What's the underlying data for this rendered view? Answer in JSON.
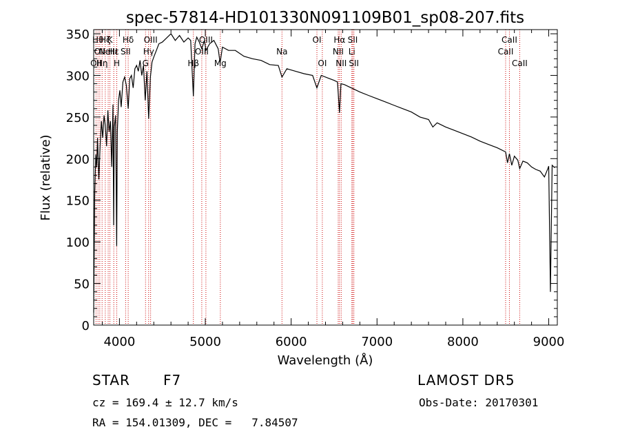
{
  "chart_data": {
    "type": "line",
    "title": "spec-57814-HD101330N091109B01_sp08-207.fits",
    "xlabel": "Wavelength (Å)",
    "ylabel": "Flux (relative)",
    "xlim": [
      3700,
      9100
    ],
    "ylim": [
      0,
      355
    ],
    "x_ticks": [
      4000,
      5000,
      6000,
      7000,
      8000,
      9000
    ],
    "y_ticks": [
      0,
      50,
      100,
      150,
      200,
      250,
      300,
      350
    ],
    "grid": false,
    "series": [
      {
        "x": [
          3700,
          3712,
          3725,
          3735,
          3745,
          3760,
          3775,
          3790,
          3805,
          3820,
          3835,
          3850,
          3865,
          3880,
          3895,
          3910,
          3925,
          3933,
          3940,
          3955,
          3968,
          3975,
          3990,
          4005,
          4020,
          4040,
          4060,
          4080,
          4102,
          4120,
          4140,
          4160,
          4180,
          4200,
          4220,
          4240,
          4260,
          4280,
          4300,
          4320,
          4340,
          4360,
          4380,
          4400,
          4430,
          4460,
          4500,
          4550,
          4600,
          4650,
          4700,
          4750,
          4800,
          4830,
          4861,
          4880,
          4900,
          4930,
          4959,
          4990,
          5007,
          5050,
          5100,
          5150,
          5172,
          5200,
          5270,
          5350,
          5450,
          5550,
          5650,
          5750,
          5850,
          5893,
          5950,
          6050,
          6150,
          6250,
          6300,
          6350,
          6450,
          6500,
          6540,
          6563,
          6580,
          6620,
          6700,
          6800,
          6900,
          7000,
          7100,
          7200,
          7300,
          7400,
          7500,
          7600,
          7650,
          7700,
          7800,
          7900,
          8000,
          8100,
          8200,
          8300,
          8400,
          8498,
          8520,
          8542,
          8570,
          8600,
          8640,
          8662,
          8700,
          8750,
          8800,
          8850,
          8900,
          8950,
          8990,
          9000,
          9020,
          9040,
          9050,
          9060,
          9070
        ],
        "y": [
          15,
          160,
          205,
          190,
          225,
          175,
          215,
          245,
          225,
          252,
          240,
          215,
          258,
          232,
          245,
          190,
          265,
          120,
          238,
          252,
          95,
          232,
          270,
          282,
          262,
          292,
          298,
          288,
          260,
          296,
          300,
          285,
          308,
          312,
          305,
          318,
          300,
          312,
          270,
          305,
          248,
          298,
          316,
          322,
          330,
          338,
          340,
          345,
          350,
          342,
          348,
          340,
          345,
          342,
          275,
          338,
          346,
          340,
          332,
          342,
          330,
          338,
          342,
          332,
          315,
          334,
          330,
          330,
          323,
          320,
          318,
          313,
          312,
          298,
          308,
          305,
          302,
          300,
          285,
          300,
          296,
          294,
          292,
          255,
          290,
          289,
          285,
          280,
          276,
          272,
          268,
          264,
          260,
          256,
          250,
          247,
          238,
          243,
          238,
          234,
          230,
          226,
          221,
          217,
          213,
          208,
          195,
          206,
          192,
          203,
          198,
          188,
          197,
          195,
          190,
          187,
          185,
          178,
          188,
          191,
          40,
          192,
          191,
          190,
          189
        ]
      }
    ],
    "line_markers": [
      {
        "x": 3727,
        "labels": [
          "OII"
        ],
        "rows": [
          3
        ]
      },
      {
        "x": 3750,
        "labels": [
          "Hθ"
        ],
        "rows": [
          1
        ]
      },
      {
        "x": 3771,
        "labels": [
          "OII"
        ],
        "rows": [
          2
        ]
      },
      {
        "x": 3798,
        "labels": [
          "Hη"
        ],
        "rows": [
          3
        ]
      },
      {
        "x": 3835,
        "labels": [
          "Hζ"
        ],
        "rows": [
          1
        ]
      },
      {
        "x": 3869,
        "labels": [
          "NeIII"
        ],
        "rows": [
          2
        ]
      },
      {
        "x": 3889,
        "labels": [
          "K"
        ],
        "rows": [
          1
        ]
      },
      {
        "x": 3934,
        "labels": [
          "Hε"
        ],
        "rows": [
          2
        ]
      },
      {
        "x": 3969,
        "labels": [
          "H"
        ],
        "rows": [
          3
        ]
      },
      {
        "x": 4072,
        "labels": [
          "SII"
        ],
        "rows": [
          2
        ]
      },
      {
        "x": 4102,
        "labels": [
          "Hδ"
        ],
        "rows": [
          1
        ]
      },
      {
        "x": 4304,
        "labels": [
          "G"
        ],
        "rows": [
          3
        ]
      },
      {
        "x": 4340,
        "labels": [
          "Hγ"
        ],
        "rows": [
          2
        ]
      },
      {
        "x": 4363,
        "labels": [
          "OIII"
        ],
        "rows": [
          1
        ]
      },
      {
        "x": 4861,
        "labels": [
          "Hβ"
        ],
        "rows": [
          3
        ]
      },
      {
        "x": 4959,
        "labels": [
          "OIII"
        ],
        "rows": [
          2
        ]
      },
      {
        "x": 5007,
        "labels": [
          "OIII"
        ],
        "rows": [
          1
        ]
      },
      {
        "x": 5175,
        "labels": [
          "Mg"
        ],
        "rows": [
          3
        ]
      },
      {
        "x": 5893,
        "labels": [
          "Na"
        ],
        "rows": [
          2
        ]
      },
      {
        "x": 6300,
        "labels": [
          "OI"
        ],
        "rows": [
          1
        ]
      },
      {
        "x": 6363,
        "labels": [
          "OI"
        ],
        "rows": [
          3
        ]
      },
      {
        "x": 6548,
        "labels": [
          "NII"
        ],
        "rows": [
          2
        ]
      },
      {
        "x": 6563,
        "labels": [
          "Hα"
        ],
        "rows": [
          1
        ]
      },
      {
        "x": 6583,
        "labels": [
          "NII"
        ],
        "rows": [
          3
        ]
      },
      {
        "x": 6707,
        "labels": [
          "Li"
        ],
        "rows": [
          2
        ]
      },
      {
        "x": 6717,
        "labels": [
          "SII"
        ],
        "rows": [
          1
        ]
      },
      {
        "x": 6731,
        "labels": [
          "SII"
        ],
        "rows": [
          3
        ]
      },
      {
        "x": 8498,
        "labels": [
          "CaII"
        ],
        "rows": [
          2
        ]
      },
      {
        "x": 8542,
        "labels": [
          "CaII"
        ],
        "rows": [
          1
        ]
      },
      {
        "x": 8662,
        "labels": [
          "CaII"
        ],
        "rows": [
          3
        ]
      }
    ],
    "colors": {
      "line": "#000000",
      "marker": "#cc0000",
      "axis": "#000000"
    }
  },
  "info": {
    "class_label": "STAR",
    "subclass": "F7",
    "survey": "LAMOST DR5",
    "cz": "cz = 169.4 ± 12.7 km/s",
    "obs_date": "Obs-Date: 20170301",
    "coords": "RA = 154.01309, DEC =   7.84507"
  }
}
